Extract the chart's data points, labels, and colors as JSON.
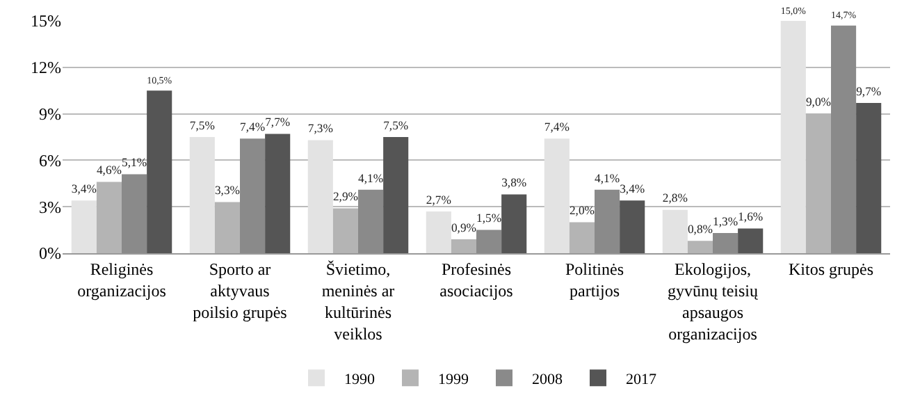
{
  "chart_data": {
    "type": "bar",
    "categories": [
      "Religinės organizacijos",
      "Sporto ar aktyvaus poilsio grupės",
      "Švietimo, meninės ar kultūrinės veiklos",
      "Profesinės asociacijos",
      "Politinės partijos",
      "Ekologijos, gyvūnų teisių apsaugos organizacijos",
      "Kitos grupės"
    ],
    "series": [
      {
        "name": "1990",
        "color": "#e3e3e3",
        "values": [
          3.4,
          7.5,
          7.3,
          2.7,
          7.4,
          2.8,
          15.0
        ],
        "value_labels": [
          "3,4%",
          "7,5%",
          "7,3%",
          "2,7%",
          "7,4%",
          "2,8%",
          "15,0%"
        ]
      },
      {
        "name": "1999",
        "color": "#b4b4b4",
        "values": [
          4.6,
          3.3,
          2.9,
          0.9,
          2.0,
          0.8,
          9.0
        ],
        "value_labels": [
          "4,6%",
          "3,3%",
          "2,9%",
          "0,9%",
          "2,0%",
          "0,8%",
          "9,0%"
        ]
      },
      {
        "name": "2008",
        "color": "#8a8a8a",
        "values": [
          5.1,
          7.4,
          4.1,
          1.5,
          4.1,
          1.3,
          14.7
        ],
        "value_labels": [
          "5,1%",
          "7,4%",
          "4,1%",
          "1,5%",
          "4,1%",
          "1,3%",
          "14,7%"
        ]
      },
      {
        "name": "2017",
        "color": "#555555",
        "values": [
          10.5,
          7.7,
          7.5,
          3.8,
          3.4,
          1.6,
          9.7
        ],
        "value_labels": [
          "10,5%",
          "7,7%",
          "7,5%",
          "3,8%",
          "3,4%",
          "1,6%",
          "9,7%"
        ]
      }
    ],
    "ylim": [
      0,
      15
    ],
    "yticks": [
      {
        "value": 0,
        "label": "0%"
      },
      {
        "value": 3,
        "label": "3%"
      },
      {
        "value": 6,
        "label": "6%"
      },
      {
        "value": 9,
        "label": "9%"
      },
      {
        "value": 12,
        "label": "12%"
      },
      {
        "value": 15,
        "label": "15%"
      }
    ],
    "grid": "y",
    "legend": "bottom"
  }
}
